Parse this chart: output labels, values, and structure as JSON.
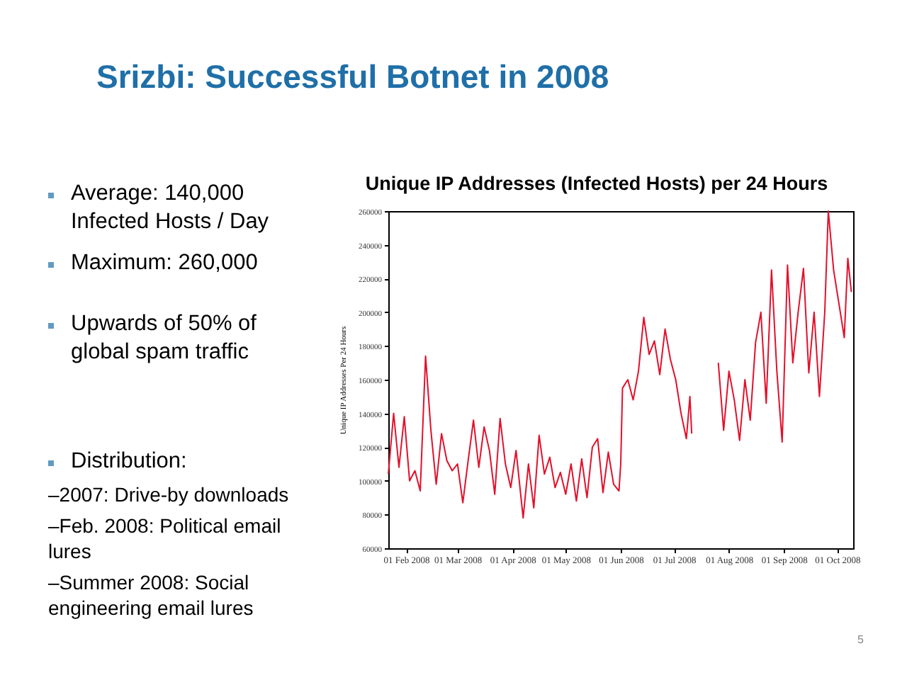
{
  "chart_data": {
    "type": "line",
    "title": "Srizbi: Successful  Botnet in 2008",
    "subtitle": "Unique IP Addresses (Infected Hosts) per 24 Hours",
    "ylabel": "Unique IP Addresses Per 24 Hours",
    "annotations": [
      "Average: 140,000\nInfected Hosts / Day",
      "Maximum: 260,000",
      "Upwards of 50% of\nglobal spam traffic",
      "Distribution:",
      "–2007: Drive-by downloads",
      "–Feb. 2008:  Political email\nlures",
      "–Summer 2008:  Social\nengineering email lures",
      "5"
    ],
    "x": [
      "2008-01-22",
      "2008-01-25",
      "2008-01-28",
      "2008-01-31",
      "2008-02-03",
      "2008-02-06",
      "2008-02-09",
      "2008-02-12",
      "2008-02-15",
      "2008-02-18",
      "2008-02-21",
      "2008-02-24",
      "2008-02-27",
      "2008-03-01",
      "2008-03-04",
      "2008-03-07",
      "2008-03-10",
      "2008-03-13",
      "2008-03-16",
      "2008-03-19",
      "2008-03-22",
      "2008-03-25",
      "2008-03-28",
      "2008-03-31",
      "2008-04-03",
      "2008-04-07",
      "2008-04-10",
      "2008-04-13",
      "2008-04-16",
      "2008-04-19",
      "2008-04-22",
      "2008-04-25",
      "2008-04-28",
      "2008-05-01",
      "2008-05-04",
      "2008-05-07",
      "2008-05-10",
      "2008-05-13",
      "2008-05-16",
      "2008-05-19",
      "2008-05-22",
      "2008-05-25",
      "2008-05-28",
      "2008-05-31",
      "2008-06-01",
      "2008-06-02",
      "2008-06-05",
      "2008-06-08",
      "2008-06-11",
      "2008-06-14",
      "2008-06-17",
      "2008-06-20",
      "2008-06-23",
      "2008-06-26",
      "2008-06-29",
      "2008-07-02",
      "2008-07-05",
      "2008-07-08",
      "2008-07-10",
      "2008-07-11",
      "2008-07-12",
      "2008-07-26",
      "2008-07-29",
      "2008-08-01",
      "2008-08-04",
      "2008-08-07",
      "2008-08-10",
      "2008-08-13",
      "2008-08-16",
      "2008-08-19",
      "2008-08-22",
      "2008-08-25",
      "2008-08-28",
      "2008-08-31",
      "2008-09-03",
      "2008-09-06",
      "2008-09-09",
      "2008-09-12",
      "2008-09-15",
      "2008-09-18",
      "2008-09-21",
      "2008-09-24",
      "2008-09-26",
      "2008-09-29",
      "2008-10-02",
      "2008-10-05",
      "2008-10-07",
      "2008-10-09"
    ],
    "series": [
      {
        "color": "#e3102b",
        "values": [
          104000,
          140000,
          108000,
          138000,
          100000,
          106000,
          94000,
          174000,
          130000,
          98000,
          128000,
          112000,
          106000,
          110000,
          87000,
          112000,
          136000,
          108000,
          132000,
          118000,
          92000,
          137000,
          110000,
          96000,
          118000,
          78000,
          110000,
          84000,
          127000,
          104000,
          114000,
          96000,
          105000,
          92000,
          110000,
          88000,
          113000,
          90000,
          120000,
          125000,
          93000,
          117000,
          98000,
          94000,
          110000,
          155000,
          160000,
          148000,
          165000,
          197000,
          175000,
          183000,
          163000,
          190000,
          172000,
          160000,
          140000,
          125000,
          150000,
          128000,
          null,
          170000,
          130000,
          165000,
          148000,
          124000,
          160000,
          136000,
          182000,
          200000,
          146000,
          225000,
          165000,
          123000,
          228000,
          170000,
          200000,
          226000,
          164000,
          200000,
          150000,
          200000,
          260000,
          225000,
          205000,
          185000,
          232000,
          212000
        ]
      }
    ],
    "xlim": [
      "2008-01-22",
      "2008-10-10"
    ],
    "xticks": [
      {
        "value": "2008-02-01",
        "label": "01 Feb 2008"
      },
      {
        "value": "2008-03-01",
        "label": "01 Mar 2008"
      },
      {
        "value": "2008-04-01",
        "label": "01 Apr 2008"
      },
      {
        "value": "2008-05-01",
        "label": "01 May 2008"
      },
      {
        "value": "2008-06-01",
        "label": "01 Jun 2008"
      },
      {
        "value": "2008-07-01",
        "label": "01 Jul 2008"
      },
      {
        "value": "2008-08-01",
        "label": "01 Aug 2008"
      },
      {
        "value": "2008-09-01",
        "label": "01 Sep 2008"
      },
      {
        "value": "2008-10-01",
        "label": "01 Oct 2008"
      }
    ],
    "ylim": [
      60000,
      260000
    ],
    "yticks": [
      60000,
      80000,
      100000,
      120000,
      140000,
      160000,
      180000,
      200000,
      220000,
      240000,
      260000
    ],
    "grid": false,
    "marker": "none",
    "line_style": "solid"
  }
}
